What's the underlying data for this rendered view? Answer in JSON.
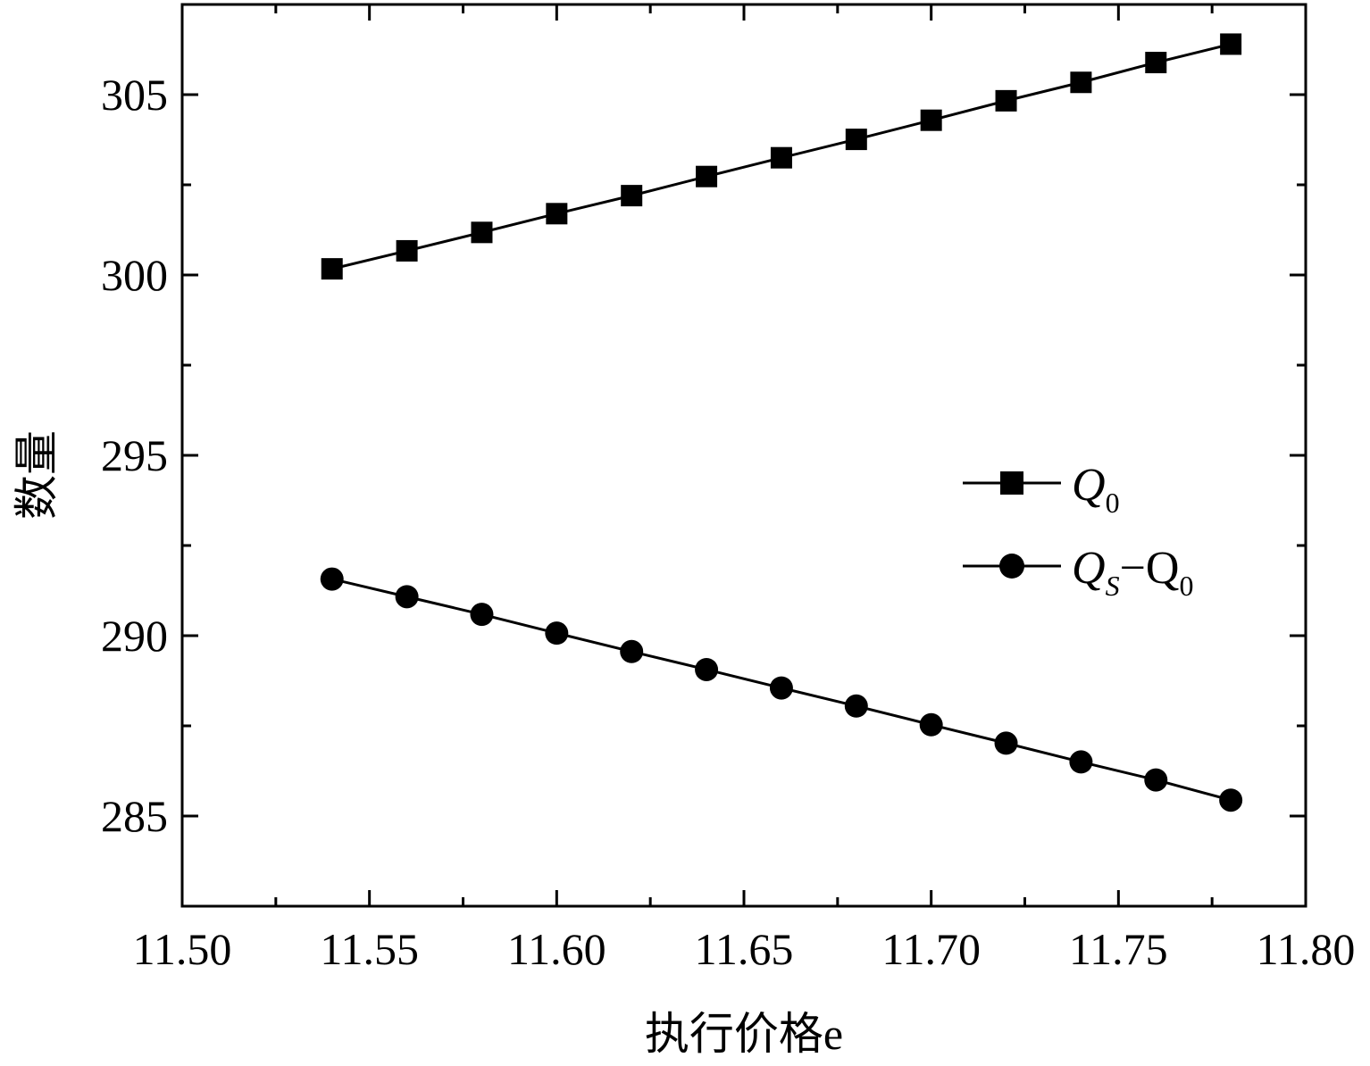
{
  "chart_data": {
    "type": "line",
    "xlabel": "执行价格e",
    "ylabel": "数量",
    "xlim": [
      11.5,
      11.8
    ],
    "ylim": [
      282.5,
      307.5
    ],
    "xticks": [
      "11.50",
      "11.55",
      "11.60",
      "11.65",
      "11.70",
      "11.75",
      "11.80"
    ],
    "yticks": [
      "285",
      "290",
      "295",
      "300",
      "305"
    ],
    "grid": false,
    "legend_position": "center-right",
    "x": [
      11.54,
      11.56,
      11.58,
      11.6,
      11.62,
      11.64,
      11.66,
      11.68,
      11.7,
      11.72,
      11.74,
      11.76,
      11.78
    ],
    "series": [
      {
        "name": "Q0",
        "marker": "square",
        "color": "#000000",
        "values": [
          300.17,
          300.67,
          301.18,
          301.7,
          302.2,
          302.73,
          303.25,
          303.76,
          304.29,
          304.83,
          305.34,
          305.89,
          306.4
        ]
      },
      {
        "name": "QS−Q0",
        "marker": "circle",
        "color": "#000000",
        "values": [
          291.57,
          291.08,
          290.59,
          290.07,
          289.56,
          289.06,
          288.55,
          288.05,
          287.53,
          287.02,
          286.5,
          286.0,
          285.44
        ]
      }
    ],
    "legend": {
      "entry1": {
        "main": "Q",
        "sub": "0"
      },
      "entry2": {
        "main": "Q",
        "sub": "S",
        "rest": "−Q",
        "sub2": "0"
      }
    }
  }
}
